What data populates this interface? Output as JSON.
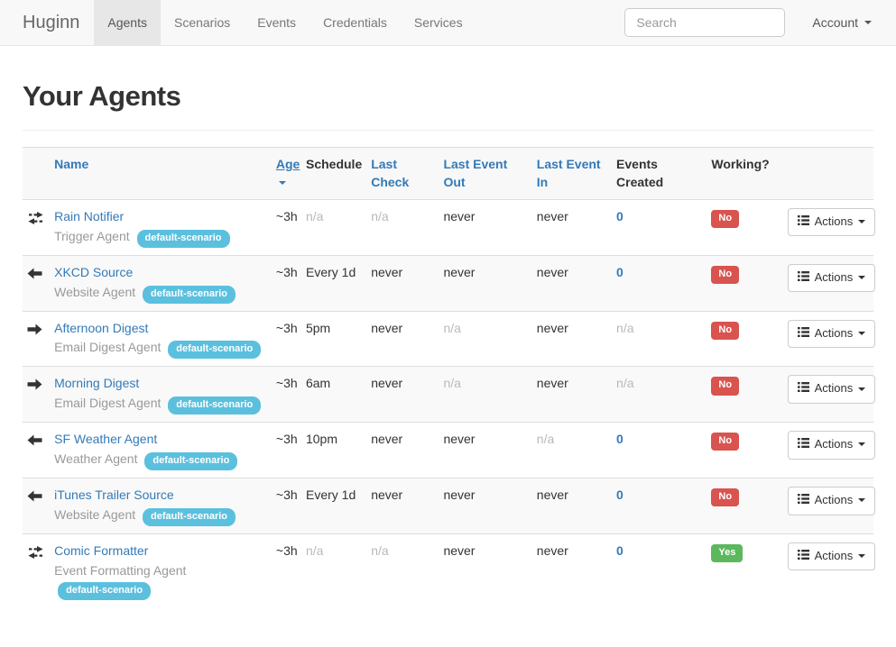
{
  "navbar": {
    "brand": "Huginn",
    "items": [
      {
        "label": "Agents",
        "active": true
      },
      {
        "label": "Scenarios",
        "active": false
      },
      {
        "label": "Events",
        "active": false
      },
      {
        "label": "Credentials",
        "active": false
      },
      {
        "label": "Services",
        "active": false
      }
    ],
    "search_placeholder": "Search",
    "account_label": "Account"
  },
  "page": {
    "title": "Your Agents"
  },
  "table": {
    "headers": [
      {
        "label": "",
        "kind": "icon",
        "link": false
      },
      {
        "label": "Name",
        "link": true
      },
      {
        "label": "Age",
        "link": true,
        "sorted": "desc"
      },
      {
        "label": "Schedule",
        "link": false
      },
      {
        "label": "Last Check",
        "link": true
      },
      {
        "label": "Last Event Out",
        "link": true
      },
      {
        "label": "Last Event In",
        "link": true
      },
      {
        "label": "Events Created",
        "link": false
      },
      {
        "label": "Working?",
        "link": false
      },
      {
        "label": "",
        "kind": "actions",
        "link": false
      }
    ],
    "actions_label": "Actions",
    "rows": [
      {
        "icon": "exchange-icon",
        "name": "Rain Notifier",
        "type": "Trigger Agent",
        "scenario": "default-scenario",
        "age": "~3h",
        "schedule": "n/a",
        "last_check": "n/a",
        "last_event_out": "never",
        "last_event_in": "never",
        "events_created": "0",
        "working": "No"
      },
      {
        "icon": "arrow-left-icon",
        "name": "XKCD Source",
        "type": "Website Agent",
        "scenario": "default-scenario",
        "age": "~3h",
        "schedule": "Every 1d",
        "last_check": "never",
        "last_event_out": "never",
        "last_event_in": "never",
        "events_created": "0",
        "working": "No"
      },
      {
        "icon": "arrow-right-icon",
        "name": "Afternoon Digest",
        "type": "Email Digest Agent",
        "scenario": "default-scenario",
        "age": "~3h",
        "schedule": "5pm",
        "last_check": "never",
        "last_event_out": "n/a",
        "last_event_in": "never",
        "events_created": "n/a",
        "working": "No"
      },
      {
        "icon": "arrow-right-icon",
        "name": "Morning Digest",
        "type": "Email Digest Agent",
        "scenario": "default-scenario",
        "age": "~3h",
        "schedule": "6am",
        "last_check": "never",
        "last_event_out": "n/a",
        "last_event_in": "never",
        "events_created": "n/a",
        "working": "No"
      },
      {
        "icon": "arrow-left-icon",
        "name": "SF Weather Agent",
        "type": "Weather Agent",
        "scenario": "default-scenario",
        "age": "~3h",
        "schedule": "10pm",
        "last_check": "never",
        "last_event_out": "never",
        "last_event_in": "n/a",
        "events_created": "0",
        "working": "No"
      },
      {
        "icon": "arrow-left-icon",
        "name": "iTunes Trailer Source",
        "type": "Website Agent",
        "scenario": "default-scenario",
        "age": "~3h",
        "schedule": "Every 1d",
        "last_check": "never",
        "last_event_out": "never",
        "last_event_in": "never",
        "events_created": "0",
        "working": "No"
      },
      {
        "icon": "exchange-icon",
        "name": "Comic Formatter",
        "type": "Event Formatting Agent",
        "scenario": "default-scenario",
        "age": "~3h",
        "schedule": "n/a",
        "last_check": "n/a",
        "last_event_out": "never",
        "last_event_in": "never",
        "events_created": "0",
        "working": "Yes"
      }
    ]
  },
  "colors": {
    "link_blue": "#337ab7",
    "scenario_badge": "#5bc0de",
    "working_no": "#d9534f",
    "working_yes": "#5cb85c",
    "navbar_bg": "#f8f8f8",
    "active_tab_bg": "#e7e7e7"
  }
}
